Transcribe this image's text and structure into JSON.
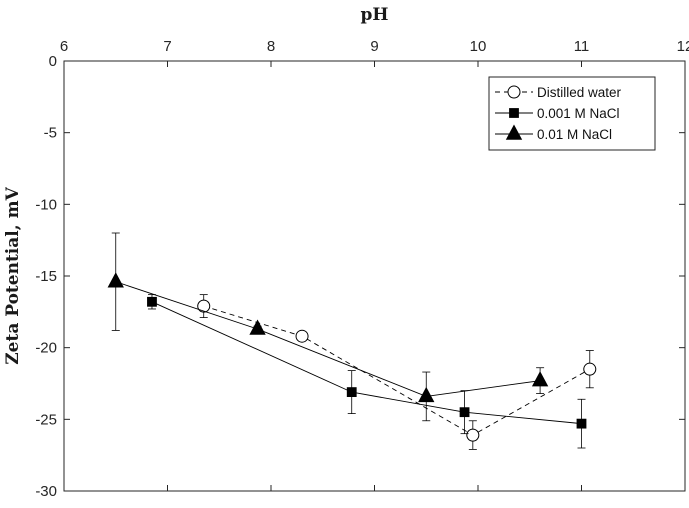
{
  "chart_data": {
    "type": "line",
    "title": "",
    "xlabel": "pH",
    "ylabel": "Zeta Potential, mV",
    "xlim": [
      6,
      12
    ],
    "ylim": [
      -30,
      0
    ],
    "x_ticks": [
      6,
      7,
      8,
      9,
      10,
      11,
      12
    ],
    "y_ticks": [
      0,
      -5,
      -10,
      -15,
      -20,
      -25,
      -30
    ],
    "x_axis_position": "top",
    "grid": false,
    "legend_position": "top-right",
    "series": [
      {
        "name": "Distilled water",
        "marker": "open-circle",
        "line_style": "dashed",
        "color": "#000000",
        "x": [
          7.35,
          8.3,
          9.95,
          11.08
        ],
        "y": [
          -17.1,
          -19.2,
          -26.1,
          -21.5
        ],
        "error": [
          0.8,
          0.3,
          1.0,
          1.3
        ]
      },
      {
        "name": "0.001 M NaCl",
        "marker": "filled-square",
        "line_style": "solid",
        "color": "#000000",
        "x": [
          6.85,
          8.78,
          9.87,
          11.0
        ],
        "y": [
          -16.8,
          -23.1,
          -24.5,
          -25.3
        ],
        "error": [
          0.5,
          1.5,
          1.5,
          1.7
        ]
      },
      {
        "name": "0.01 M NaCl",
        "marker": "filled-triangle",
        "line_style": "solid",
        "color": "#000000",
        "x": [
          6.5,
          7.87,
          9.5,
          10.6
        ],
        "y": [
          -15.4,
          -18.7,
          -23.4,
          -22.3
        ],
        "error": [
          3.4,
          0.2,
          1.7,
          0.9
        ]
      }
    ]
  }
}
